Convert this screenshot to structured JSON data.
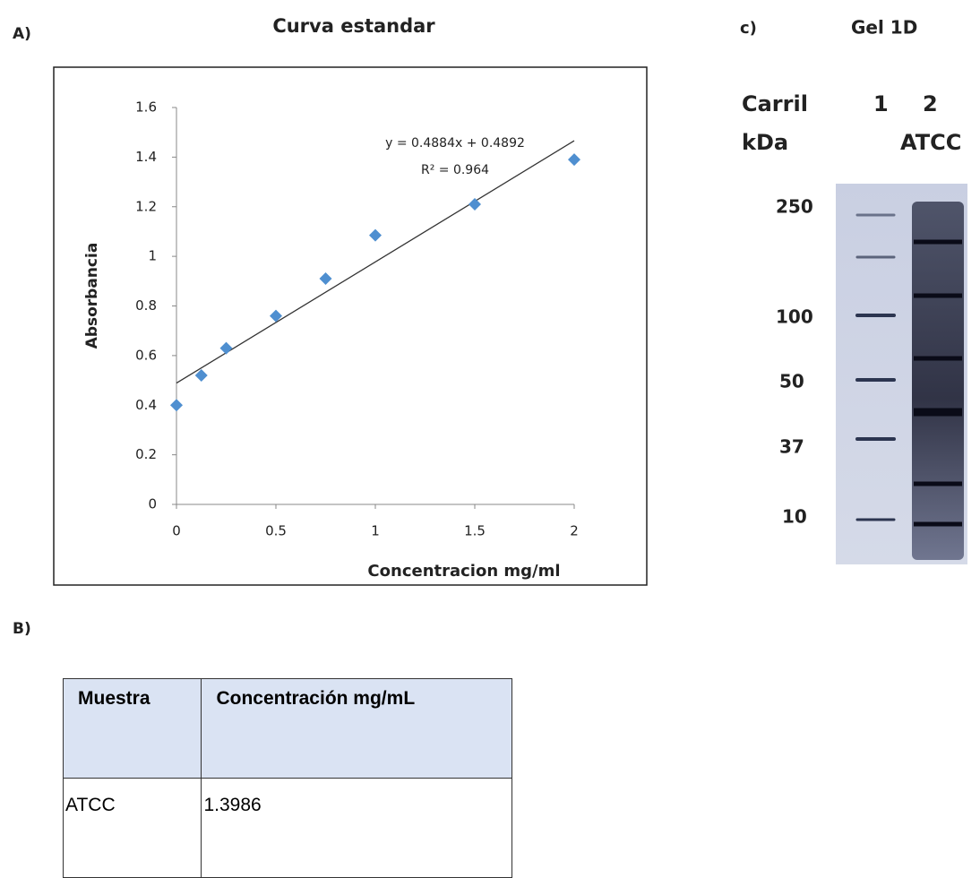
{
  "panels": {
    "a": "A)",
    "b": "B)",
    "c": "c)"
  },
  "chart_data": {
    "type": "scatter",
    "title": "Curva estandar",
    "x_label": "Concentracion mg/ml",
    "y_label": "Absorbancia",
    "x": [
      0,
      0.125,
      0.25,
      0.5,
      0.75,
      1,
      1.5,
      2
    ],
    "values": [
      0.4,
      0.52,
      0.63,
      0.76,
      0.91,
      1.085,
      1.21,
      1.39
    ],
    "color": "#4f8fd0",
    "xlim": [
      0,
      2
    ],
    "xticks": [
      0,
      0.5,
      1,
      1.5,
      2
    ],
    "ylim": [
      0,
      1.6
    ],
    "yticks": [
      0,
      0.2,
      0.4,
      0.6,
      0.8,
      1,
      1.2,
      1.4,
      1.6
    ],
    "grid": false,
    "trendline": {
      "slope": 0.4884,
      "intercept": 0.4892,
      "label": "y = 0.4884x + 0.4892",
      "r2_label": "R² = 0.964"
    }
  },
  "table": {
    "headers": [
      "Muestra",
      "Concentración mg/mL"
    ],
    "rows": [
      [
        "ATCC",
        "1.3986"
      ]
    ]
  },
  "gel": {
    "title": "Gel 1D",
    "lane_header": "Carril",
    "unit": "kDa",
    "lanes": [
      "1",
      "2"
    ],
    "lane_2_name": "ATCC",
    "markers": [
      "250",
      "100",
      "50",
      "37",
      "10"
    ]
  }
}
